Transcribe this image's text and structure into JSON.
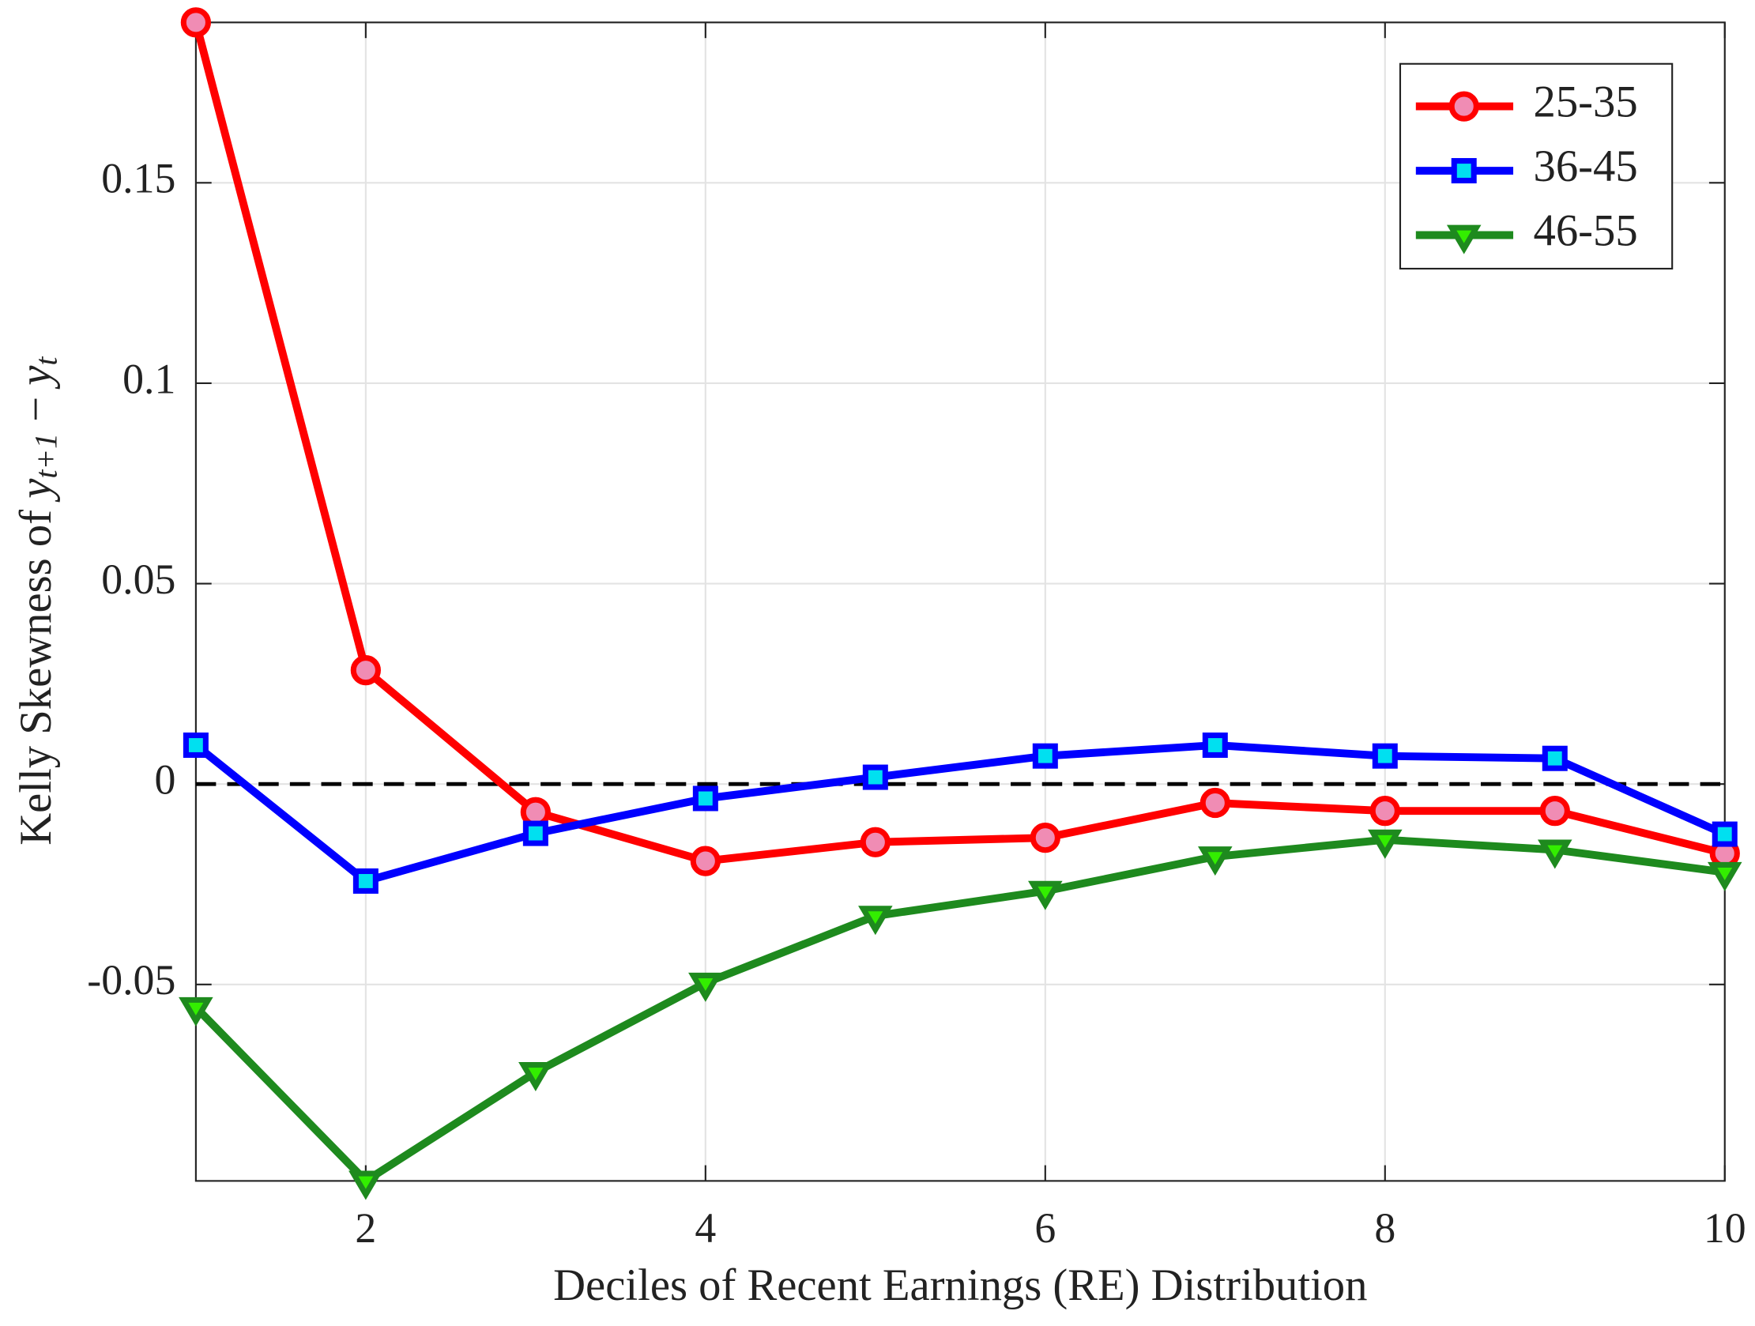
{
  "chart_data": {
    "type": "line",
    "xlabel": "Deciles of Recent Earnings (RE) Distribution",
    "ylabel": {
      "text": "Kelly Skewness of ",
      "var1": "y",
      "sub1": "t+1",
      "op": " − ",
      "var2": "y",
      "sub2": "t"
    },
    "x": [
      1,
      2,
      3,
      4,
      5,
      6,
      7,
      8,
      9,
      10
    ],
    "xlim": [
      1,
      10
    ],
    "xticks": [
      2,
      4,
      6,
      8,
      10
    ],
    "ylim": [
      -0.099,
      0.19
    ],
    "yticks": [
      -0.05,
      0,
      0.05,
      0.1,
      0.15
    ],
    "grid": true,
    "legend": "northeast",
    "hline": 0,
    "series": [
      {
        "name": "25-35",
        "color": "#ff0000",
        "marker": "circle",
        "marker_fill": "#f08cb4",
        "values": [
          0.19,
          0.0284,
          -0.007,
          -0.0192,
          -0.0145,
          -0.0134,
          -0.0047,
          -0.0067,
          -0.0067,
          -0.0173
        ]
      },
      {
        "name": "36-45",
        "color": "#0000ff",
        "marker": "square",
        "marker_fill": "#00e0f0",
        "values": [
          0.0097,
          -0.0242,
          -0.0123,
          -0.0036,
          0.0017,
          0.007,
          0.0097,
          0.007,
          0.0064,
          -0.0125
        ]
      },
      {
        "name": "46-55",
        "color": "#1e8a1e",
        "marker": "triangle-down",
        "marker_fill": "#33ee00",
        "values": [
          -0.0557,
          -0.099,
          -0.0719,
          -0.0496,
          -0.0329,
          -0.0267,
          -0.0181,
          -0.0139,
          -0.0164,
          -0.022
        ]
      }
    ]
  }
}
